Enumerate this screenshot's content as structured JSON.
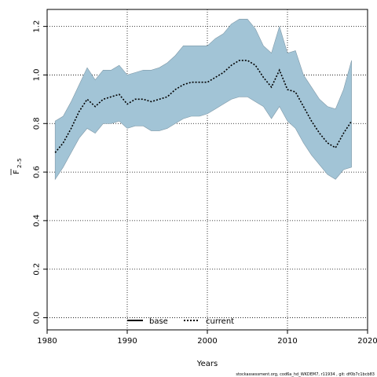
{
  "chart_data": {
    "type": "area",
    "xlabel": "Years",
    "ylabel_main": "F",
    "ylabel_sub": "2–5",
    "xlim": [
      1980,
      2020
    ],
    "ylim": [
      -0.05,
      1.27
    ],
    "x_ticks": [
      1980,
      1990,
      2000,
      2010,
      2020
    ],
    "y_ticks": [
      0.0,
      0.2,
      0.4,
      0.6,
      0.8,
      1.0,
      1.2
    ],
    "y_tick_labels": [
      "0.0",
      "0.2",
      "0.4",
      "0.6",
      "0.8",
      "1.0",
      "1.2"
    ],
    "grid": true,
    "legend_placement": "bottom-center",
    "colors": {
      "band": "#a2c4d6",
      "band_edge": "#7f99a8",
      "line": "#000000",
      "grid": "#000000"
    },
    "x": [
      1981,
      1982,
      1983,
      1984,
      1985,
      1986,
      1987,
      1988,
      1989,
      1990,
      1991,
      1992,
      1993,
      1994,
      1995,
      1996,
      1997,
      1998,
      1999,
      2000,
      2001,
      2002,
      2003,
      2004,
      2005,
      2006,
      2007,
      2008,
      2009,
      2010,
      2011,
      2012,
      2013,
      2014,
      2015,
      2016,
      2017,
      2018
    ],
    "series": [
      {
        "name": "current",
        "style": "dotted",
        "values": [
          0.68,
          0.72,
          0.78,
          0.85,
          0.9,
          0.87,
          0.9,
          0.91,
          0.92,
          0.88,
          0.9,
          0.9,
          0.89,
          0.9,
          0.91,
          0.94,
          0.96,
          0.97,
          0.97,
          0.97,
          0.99,
          1.01,
          1.04,
          1.06,
          1.06,
          1.04,
          0.99,
          0.95,
          1.02,
          0.94,
          0.93,
          0.87,
          0.81,
          0.76,
          0.72,
          0.7,
          0.76,
          0.81
        ]
      }
    ],
    "band_upper": [
      0.81,
      0.83,
      0.89,
      0.96,
      1.03,
      0.98,
      1.02,
      1.02,
      1.04,
      1.0,
      1.01,
      1.02,
      1.02,
      1.03,
      1.05,
      1.08,
      1.12,
      1.12,
      1.12,
      1.12,
      1.15,
      1.17,
      1.21,
      1.23,
      1.23,
      1.19,
      1.12,
      1.09,
      1.2,
      1.09,
      1.1,
      1.0,
      0.95,
      0.9,
      0.87,
      0.86,
      0.94,
      1.06
    ],
    "band_lower": [
      0.57,
      0.62,
      0.68,
      0.74,
      0.78,
      0.76,
      0.8,
      0.8,
      0.81,
      0.78,
      0.79,
      0.79,
      0.77,
      0.77,
      0.78,
      0.8,
      0.82,
      0.83,
      0.83,
      0.84,
      0.86,
      0.88,
      0.9,
      0.91,
      0.91,
      0.89,
      0.87,
      0.82,
      0.87,
      0.81,
      0.78,
      0.72,
      0.67,
      0.63,
      0.59,
      0.57,
      0.61,
      0.62
    ],
    "legend": [
      {
        "label": "base",
        "style": "solid"
      },
      {
        "label": "current",
        "style": "dotted"
      }
    ]
  },
  "footer": "stockassessment.org, cod6a_hd_WKDEM7, r11934 , git: df0b7c1bcb83"
}
